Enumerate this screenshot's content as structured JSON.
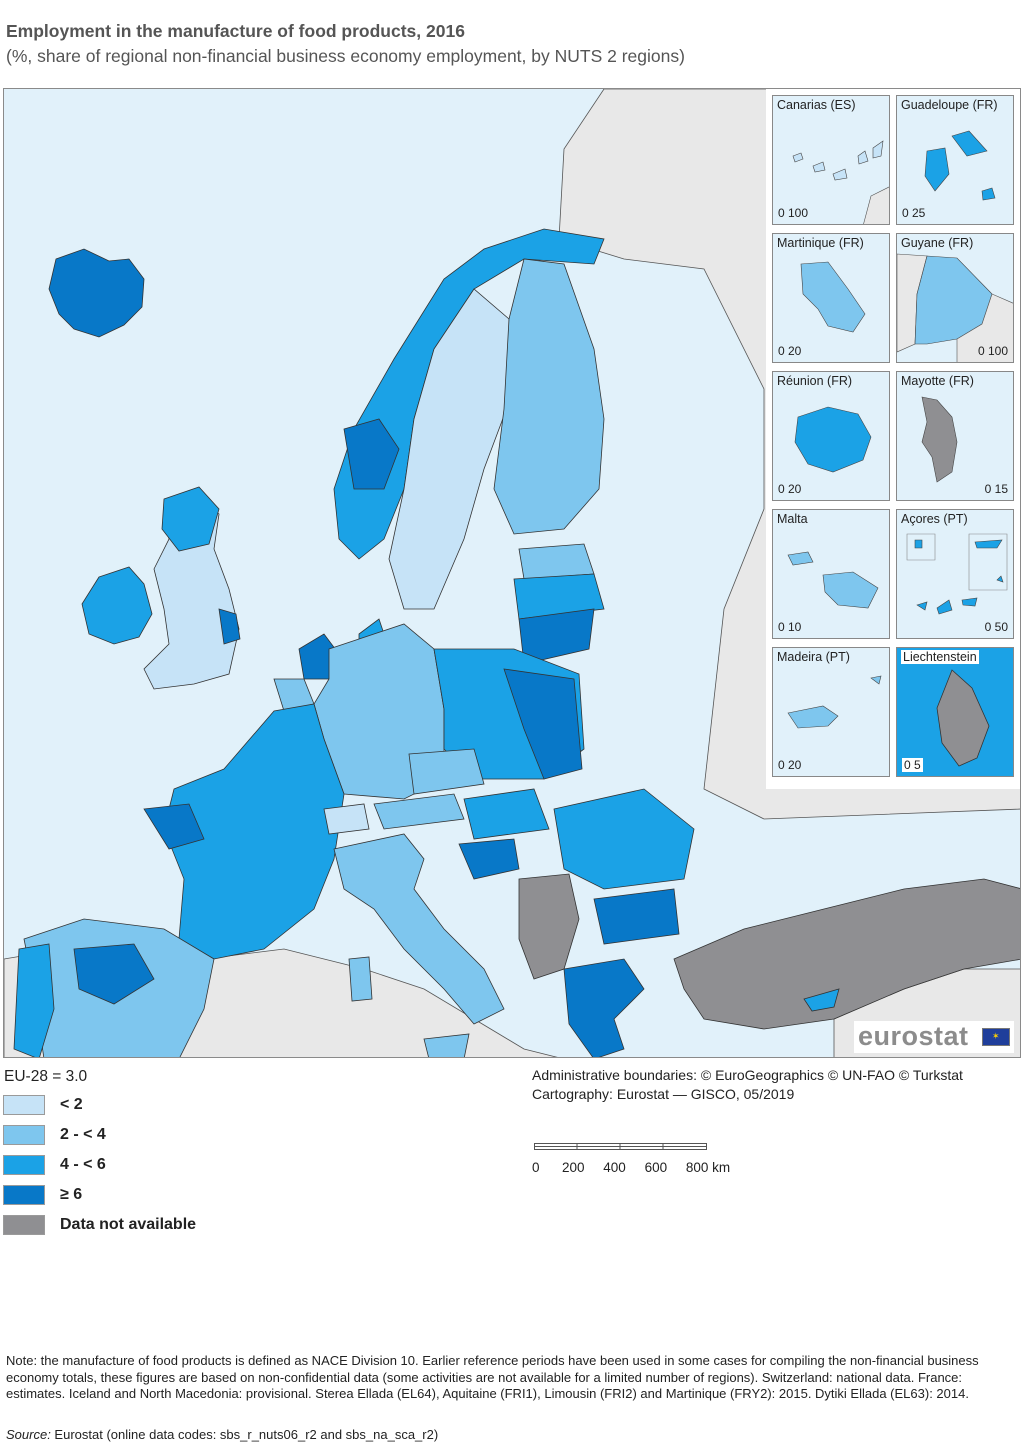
{
  "header": {
    "title": "Employment in the manufacture of food products, 2016",
    "subtitle": "(%, share of regional non-financial business economy employment, by NUTS 2 regions)"
  },
  "colors": {
    "sea": "#e1f1fa",
    "non_eu_land": "#e8e8e8",
    "class_lt2": "#c6e3f7",
    "class_2_4": "#7ec6ee",
    "class_4_6": "#1ba2e6",
    "class_ge6": "#0878c8",
    "not_available": "#8f8f92",
    "border": "#333333"
  },
  "insets": [
    {
      "name": "Canarias (ES)",
      "scale": "0 100"
    },
    {
      "name": "Guadeloupe (FR)",
      "scale": "0 25"
    },
    {
      "name": "Martinique (FR)",
      "scale": "0 20"
    },
    {
      "name": "Guyane (FR)",
      "scale": "0 100"
    },
    {
      "name": "Réunion (FR)",
      "scale": "0 20"
    },
    {
      "name": "Mayotte (FR)",
      "scale": "0 15"
    },
    {
      "name": "Malta",
      "scale": "0 10"
    },
    {
      "name": "Açores (PT)",
      "scale": "0 50"
    },
    {
      "name": "Madeira (PT)",
      "scale": "0 20"
    },
    {
      "name": "Liechtenstein",
      "scale": "0 5"
    }
  ],
  "legend": {
    "eu_average": "EU-28 = 3.0",
    "items": [
      {
        "label": "< 2",
        "color": "#c6e3f7"
      },
      {
        "label": "2 - < 4",
        "color": "#7ec6ee"
      },
      {
        "label": "4 - < 6",
        "color": "#1ba2e6"
      },
      {
        "label": "≥ 6",
        "color": "#0878c8"
      },
      {
        "label": "Data not available",
        "color": "#8f8f92"
      }
    ]
  },
  "credits": {
    "line1": "Administrative boundaries: © EuroGeographics © UN-FAO © Turkstat",
    "line2": "Cartography: Eurostat — GISCO, 05/2019"
  },
  "scale": {
    "ticks": "0      200     400     600     800 km"
  },
  "logo": {
    "text": "eurostat"
  },
  "footer": {
    "note": "Note: the manufacture of food products is defined as NACE Division 10. Earlier reference periods have been used in some cases for compiling the non-financial business economy totals, these figures are based on non-confidential data (some activities are not available for a limited number of regions). Switzerland: national data. France: estimates. Iceland and North Macedonia: provisional. Sterea Ellada (EL64), Aquitaine (FRI1), Limousin (FRI2) and Martinique (FRY2): 2015. Dytiki Ellada (EL63): 2014.",
    "source_label": "Source:",
    "source_text": " Eurostat (online data codes: sbs_r_nuts06_r2 and sbs_na_sca_r2)"
  }
}
